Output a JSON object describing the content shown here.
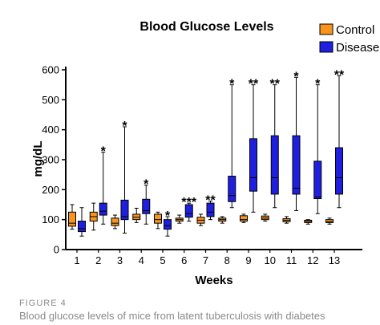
{
  "figure": {
    "label": "FIGURE 4",
    "caption": "Blood glucose levels of mice from latent tuberculosis with diabetes"
  },
  "chart_data": {
    "type": "boxplot",
    "title": "Blood Glucose Levels",
    "xlabel": "Weeks",
    "ylabel": "mg/dL",
    "ylim": [
      0,
      600
    ],
    "yticks": [
      0,
      100,
      200,
      300,
      400,
      500,
      600
    ],
    "categories": [
      "1",
      "2",
      "3",
      "4",
      "5",
      "6",
      "7",
      "8",
      "9",
      "10",
      "11",
      "12",
      "13"
    ],
    "legend_position": "top-right",
    "grid": false,
    "series": [
      {
        "name": "Control",
        "color": "#f7941d",
        "boxes": [
          {
            "min": 68,
            "q1": 78,
            "median": 88,
            "q3": 125,
            "max": 150
          },
          {
            "min": 65,
            "q1": 95,
            "median": 110,
            "q3": 125,
            "max": 155
          },
          {
            "min": 70,
            "q1": 80,
            "median": 88,
            "q3": 105,
            "max": 115
          },
          {
            "min": 90,
            "q1": 100,
            "median": 108,
            "q3": 118,
            "max": 138
          },
          {
            "min": 70,
            "q1": 88,
            "median": 100,
            "q3": 118,
            "max": 125
          },
          {
            "min": 88,
            "q1": 95,
            "median": 100,
            "q3": 105,
            "max": 115
          },
          {
            "min": 80,
            "q1": 88,
            "median": 98,
            "q3": 108,
            "max": 118
          },
          {
            "min": 88,
            "q1": 95,
            "median": 100,
            "q3": 105,
            "max": 110
          },
          {
            "min": 90,
            "q1": 95,
            "median": 100,
            "q3": 113,
            "max": 118
          },
          {
            "min": 95,
            "q1": 100,
            "median": 105,
            "q3": 112,
            "max": 118
          },
          {
            "min": 88,
            "q1": 93,
            "median": 98,
            "q3": 103,
            "max": 110
          },
          {
            "min": 85,
            "q1": 90,
            "median": 94,
            "q3": 98,
            "max": 100
          },
          {
            "min": 85,
            "q1": 90,
            "median": 93,
            "q3": 100,
            "max": 105
          }
        ]
      },
      {
        "name": "Disease",
        "color": "#1f1fe0",
        "boxes": [
          {
            "min": 45,
            "q1": 60,
            "median": 70,
            "q3": 95,
            "max": 140
          },
          {
            "min": 85,
            "q1": 115,
            "median": 128,
            "q3": 155,
            "max": 325
          },
          {
            "min": 55,
            "q1": 100,
            "median": 110,
            "q3": 165,
            "max": 410
          },
          {
            "min": 85,
            "q1": 120,
            "median": 130,
            "q3": 168,
            "max": 215
          },
          {
            "min": 45,
            "q1": 68,
            "median": 80,
            "q3": 100,
            "max": 110
          },
          {
            "min": 95,
            "q1": 108,
            "median": 120,
            "q3": 150,
            "max": 155
          },
          {
            "min": 100,
            "q1": 110,
            "median": 125,
            "q3": 155,
            "max": 162
          },
          {
            "min": 140,
            "q1": 160,
            "median": 180,
            "q3": 245,
            "max": 550
          },
          {
            "min": 125,
            "q1": 195,
            "median": 240,
            "q3": 370,
            "max": 550
          },
          {
            "min": 140,
            "q1": 185,
            "median": 240,
            "q3": 380,
            "max": 550
          },
          {
            "min": 130,
            "q1": 185,
            "median": 205,
            "q3": 380,
            "max": 575
          },
          {
            "min": 120,
            "q1": 170,
            "median": 175,
            "q3": 295,
            "max": 550
          },
          {
            "min": 140,
            "q1": 185,
            "median": 240,
            "q3": 340,
            "max": 580
          }
        ]
      }
    ],
    "significance": [
      "",
      "*",
      "*",
      "*",
      "*",
      "***",
      "**",
      "*",
      "**",
      "**",
      "*",
      "*",
      "**"
    ]
  }
}
